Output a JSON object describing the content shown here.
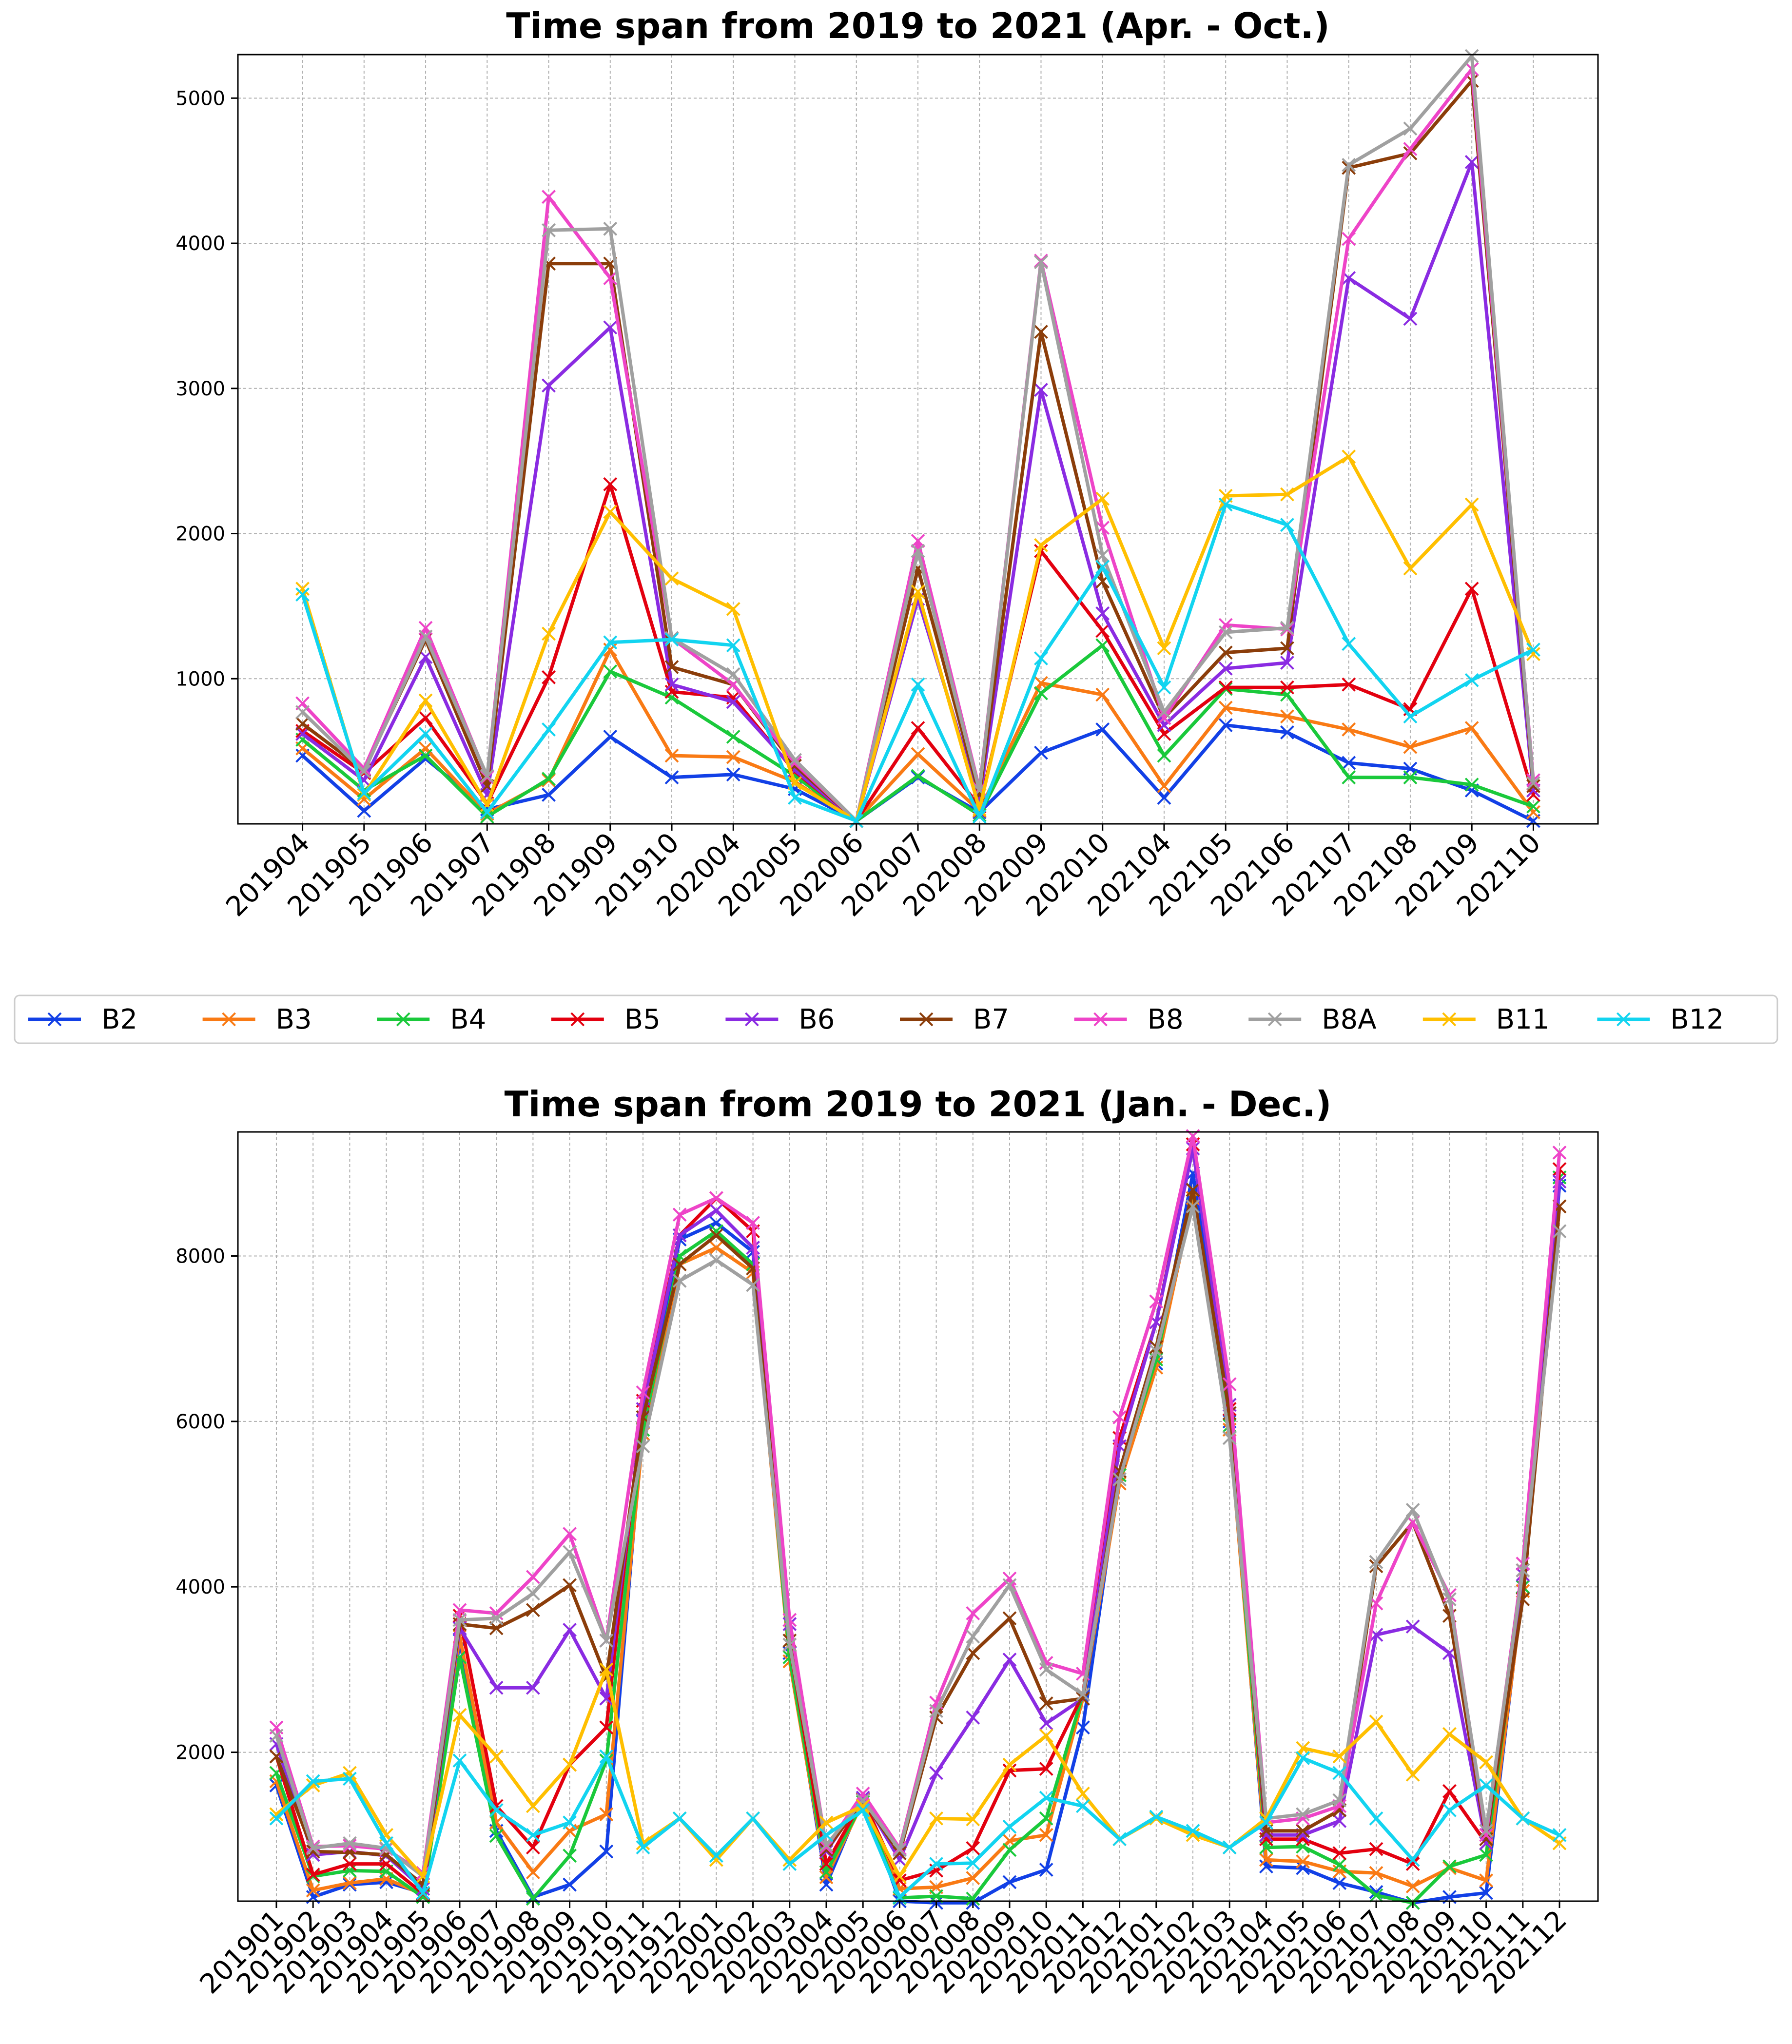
{
  "legend": {
    "placement": "between charts, horizontal",
    "entries": [
      "B2",
      "B3",
      "B4",
      "B5",
      "B6",
      "B7",
      "B8",
      "B8A",
      "B11",
      "B12"
    ]
  },
  "colors": {
    "B2": "#1240e6",
    "B3": "#f97a14",
    "B4": "#1ac93b",
    "B5": "#e3000f",
    "B6": "#8a2be2",
    "B7": "#8b3d0a",
    "B8": "#ee44c8",
    "B8A": "#a0a0a0",
    "B11": "#ffbf00",
    "B12": "#12d4f0"
  },
  "chart_data": [
    {
      "type": "line",
      "title": "Time span from 2019 to 2021 (Apr. - Oct.)",
      "xlabel": "",
      "ylabel": "",
      "categories": [
        "201904",
        "201905",
        "201906",
        "201907",
        "201908",
        "201909",
        "201910",
        "202004",
        "202005",
        "202006",
        "202007",
        "202008",
        "202009",
        "202010",
        "202104",
        "202105",
        "202106",
        "202107",
        "202108",
        "202109",
        "202110"
      ],
      "ylim": [
        0,
        5300
      ],
      "yticks": [
        1000,
        2000,
        3000,
        4000,
        5000
      ],
      "grid": true,
      "marker": "x",
      "series": [
        {
          "name": "B2",
          "values": [
            470,
            90,
            450,
            100,
            200,
            600,
            320,
            340,
            240,
            20,
            320,
            80,
            490,
            650,
            180,
            680,
            630,
            420,
            380,
            230,
            20
          ]
        },
        {
          "name": "B3",
          "values": [
            520,
            170,
            520,
            70,
            300,
            1200,
            470,
            460,
            290,
            20,
            480,
            90,
            970,
            890,
            260,
            800,
            740,
            650,
            530,
            660,
            80
          ]
        },
        {
          "name": "B4",
          "values": [
            580,
            230,
            470,
            50,
            310,
            1050,
            870,
            600,
            330,
            20,
            330,
            60,
            900,
            1230,
            470,
            930,
            890,
            320,
            320,
            270,
            120
          ]
        },
        {
          "name": "B5",
          "values": [
            640,
            350,
            730,
            140,
            1010,
            2340,
            910,
            870,
            360,
            20,
            660,
            120,
            1880,
            1330,
            620,
            940,
            940,
            960,
            790,
            1620,
            200
          ]
        },
        {
          "name": "B6",
          "values": [
            620,
            300,
            1150,
            200,
            3020,
            3420,
            960,
            840,
            370,
            20,
            1550,
            160,
            2990,
            1450,
            680,
            1070,
            1110,
            3760,
            3480,
            4560,
            230
          ]
        },
        {
          "name": "B7",
          "values": [
            690,
            370,
            1270,
            260,
            3860,
            3860,
            1080,
            960,
            400,
            20,
            1760,
            200,
            3390,
            1670,
            730,
            1180,
            1210,
            4520,
            4620,
            5120,
            260
          ]
        },
        {
          "name": "B8",
          "values": [
            830,
            380,
            1350,
            320,
            4320,
            3760,
            1280,
            960,
            420,
            20,
            1950,
            240,
            3880,
            2040,
            730,
            1370,
            1340,
            4030,
            4650,
            5200,
            300
          ]
        },
        {
          "name": "B8A",
          "values": [
            770,
            360,
            1290,
            330,
            4090,
            4100,
            1280,
            1030,
            440,
            20,
            1880,
            230,
            3870,
            1850,
            770,
            1320,
            1350,
            4540,
            4790,
            5290,
            280
          ]
        },
        {
          "name": "B11",
          "values": [
            1620,
            200,
            850,
            130,
            1310,
            2150,
            1690,
            1480,
            280,
            20,
            1600,
            100,
            1920,
            2240,
            1210,
            2260,
            2270,
            2530,
            1760,
            2200,
            1170
          ]
        },
        {
          "name": "B12",
          "values": [
            1580,
            210,
            620,
            80,
            650,
            1250,
            1270,
            1230,
            180,
            20,
            960,
            50,
            1140,
            1770,
            940,
            2200,
            2060,
            1240,
            740,
            990,
            1200
          ]
        }
      ]
    },
    {
      "type": "line",
      "title": "Time span from 2019 to 2021 (Jan. - Dec.)",
      "xlabel": "",
      "ylabel": "",
      "categories": [
        "201901",
        "201902",
        "201903",
        "201904",
        "201905",
        "201906",
        "201907",
        "201908",
        "201909",
        "201910",
        "201911",
        "201912",
        "202001",
        "202002",
        "202003",
        "202004",
        "202005",
        "202006",
        "202007",
        "202008",
        "202009",
        "202010",
        "202011",
        "202012",
        "202101",
        "202102",
        "202103",
        "202104",
        "202105",
        "202106",
        "202107",
        "202108",
        "202109",
        "202110",
        "202111",
        "202112"
      ],
      "ylim": [
        200,
        9500
      ],
      "yticks": [
        2000,
        4000,
        6000,
        8000
      ],
      "grid": true,
      "marker": "x",
      "series": [
        {
          "name": "B2",
          "values": [
            1600,
            250,
            400,
            430,
            300,
            3350,
            1050,
            250,
            400,
            800,
            6000,
            8200,
            8400,
            8050,
            3200,
            400,
            1450,
            200,
            180,
            180,
            430,
            580,
            2300,
            5400,
            6700,
            9000,
            6000,
            620,
            600,
            420,
            310,
            180,
            250,
            300,
            4000,
            8850
          ]
        },
        {
          "name": "B3",
          "values": [
            1650,
            330,
            420,
            470,
            280,
            3400,
            1150,
            550,
            1050,
            1250,
            5850,
            7900,
            8100,
            7800,
            3100,
            490,
            1400,
            350,
            370,
            480,
            930,
            1000,
            2650,
            5250,
            6650,
            8700,
            5900,
            700,
            680,
            560,
            540,
            380,
            600,
            450,
            3950,
            8600
          ]
        },
        {
          "name": "B4",
          "values": [
            1750,
            500,
            570,
            560,
            250,
            3150,
            990,
            230,
            750,
            1900,
            5900,
            8000,
            8300,
            7900,
            3150,
            550,
            1400,
            240,
            260,
            230,
            820,
            1200,
            2700,
            5350,
            6750,
            8800,
            5950,
            850,
            860,
            640,
            270,
            180,
            620,
            760,
            4000,
            8950
          ]
        },
        {
          "name": "B5",
          "values": [
            1950,
            520,
            650,
            650,
            290,
            3650,
            1350,
            850,
            1850,
            2300,
            6250,
            8250,
            8700,
            8300,
            3300,
            650,
            1430,
            450,
            570,
            840,
            1780,
            1800,
            2700,
            5800,
            7200,
            9350,
            6150,
            950,
            950,
            780,
            830,
            650,
            1530,
            900,
            4200,
            9050
          ]
        },
        {
          "name": "B6",
          "values": [
            2100,
            760,
            800,
            750,
            350,
            3500,
            2780,
            2780,
            3480,
            2650,
            6150,
            8250,
            8550,
            8100,
            3550,
            800,
            1450,
            700,
            1750,
            2420,
            3120,
            2350,
            2650,
            5700,
            7200,
            9300,
            6200,
            1000,
            1000,
            1170,
            3420,
            3520,
            3200,
            900,
            4150,
            8900
          ]
        },
        {
          "name": "B7",
          "values": [
            1950,
            800,
            790,
            760,
            400,
            3550,
            3500,
            3720,
            4020,
            2900,
            6050,
            7900,
            8250,
            7850,
            3350,
            820,
            1420,
            780,
            2420,
            3200,
            3620,
            2590,
            2650,
            5400,
            6900,
            8800,
            6100,
            1050,
            1050,
            1300,
            4250,
            4780,
            3650,
            950,
            3850,
            8600
          ]
        },
        {
          "name": "B8",
          "values": [
            2300,
            860,
            870,
            830,
            540,
            3720,
            3680,
            4120,
            4640,
            3350,
            6350,
            8500,
            8700,
            8400,
            3600,
            850,
            1500,
            840,
            2600,
            3680,
            4100,
            3080,
            2950,
            6050,
            7450,
            9450,
            6450,
            1150,
            1200,
            1350,
            3800,
            4780,
            3900,
            1000,
            4280,
            9250
          ]
        },
        {
          "name": "B8A",
          "values": [
            2200,
            840,
            900,
            840,
            500,
            3600,
            3620,
            3920,
            4420,
            3350,
            5700,
            7700,
            7950,
            7650,
            3300,
            880,
            1420,
            820,
            2500,
            3400,
            4020,
            3000,
            2700,
            5300,
            6850,
            8600,
            5800,
            1200,
            1250,
            1420,
            4300,
            4930,
            3850,
            1050,
            4200,
            8300
          ]
        },
        {
          "name": "B11",
          "values": [
            1250,
            1600,
            1750,
            1000,
            500,
            2450,
            1950,
            1350,
            1850,
            3000,
            900,
            1200,
            700,
            1200,
            700,
            1150,
            1350,
            500,
            1200,
            1190,
            1850,
            2200,
            1500,
            950,
            1200,
            1000,
            850,
            1200,
            2050,
            1950,
            2370,
            1730,
            2220,
            1880,
            1200,
            900
          ]
        },
        {
          "name": "B12",
          "values": [
            1200,
            1650,
            1680,
            900,
            300,
            1900,
            1300,
            1000,
            1150,
            1950,
            850,
            1200,
            750,
            1200,
            650,
            1000,
            1300,
            250,
            650,
            660,
            1100,
            1450,
            1350,
            950,
            1220,
            1050,
            850,
            1150,
            1930,
            1750,
            1200,
            700,
            1300,
            1600,
            1200,
            1000
          ]
        }
      ]
    }
  ]
}
